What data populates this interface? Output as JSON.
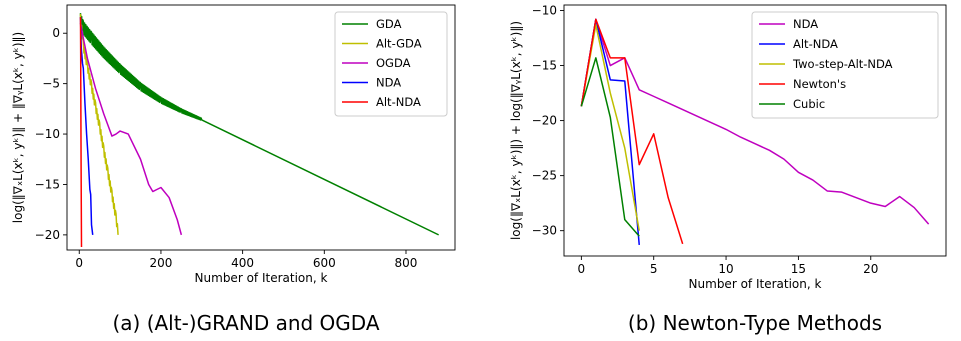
{
  "chart_data": [
    {
      "type": "line",
      "caption": "(a) (Alt-)GRAND and OGDA",
      "xlabel": "Number of Iteration, k",
      "ylabel": "log(‖∇ₓL(xᵏ, yᵏ)‖ + ‖∇ᵧL(xᵏ, yᵏ)‖)",
      "xlim": [
        -30,
        920
      ],
      "ylim": [
        -21.5,
        2.8
      ],
      "xticks": [
        0,
        200,
        400,
        600,
        800
      ],
      "yticks": [
        0,
        -5,
        -10,
        -15,
        -20
      ],
      "legend_position": "top-right",
      "series": [
        {
          "name": "GDA",
          "color": "#008000",
          "oscillate": true,
          "x": [
            3,
            10,
            30,
            60,
            100,
            150,
            200,
            250,
            300,
            880
          ],
          "y": [
            1.0,
            0.2,
            -0.8,
            -2.2,
            -3.8,
            -5.5,
            -6.8,
            -7.8,
            -8.6,
            -20.0
          ]
        },
        {
          "name": "Alt-GDA",
          "color": "#bfbf00",
          "oscillate": true,
          "x": [
            3,
            10,
            20,
            30,
            40,
            50,
            60,
            70,
            80,
            90,
            95
          ],
          "y": [
            1.3,
            -1.5,
            -3.5,
            -5.5,
            -7.5,
            -9.5,
            -11.8,
            -14.0,
            -16.2,
            -18.5,
            -20.0
          ]
        },
        {
          "name": "OGDA",
          "color": "#bf00bf",
          "oscillate": false,
          "x": [
            3,
            10,
            20,
            40,
            60,
            80,
            90,
            100,
            120,
            150,
            170,
            180,
            190,
            200,
            220,
            240,
            250
          ],
          "y": [
            1.0,
            -0.5,
            -2.5,
            -5.5,
            -8.0,
            -10.2,
            -10.0,
            -9.7,
            -10.0,
            -12.5,
            -15.0,
            -15.7,
            -15.5,
            -15.3,
            -16.3,
            -18.5,
            -20.0
          ]
        },
        {
          "name": "NDA",
          "color": "#0000ff",
          "oscillate": false,
          "x": [
            3,
            5,
            8,
            10,
            14,
            18,
            22,
            26,
            28,
            30,
            33
          ],
          "y": [
            1.6,
            -1.5,
            -3.0,
            -3.5,
            -7.0,
            -10.0,
            -12.5,
            -15.5,
            -16.0,
            -19.0,
            -20.0
          ]
        },
        {
          "name": "Alt-NDA",
          "color": "#ff0000",
          "oscillate": false,
          "x": [
            3,
            3.5,
            4,
            4.5,
            5,
            5.5
          ],
          "y": [
            1.6,
            -2.0,
            -8.0,
            -13.0,
            -17.0,
            -21.2
          ]
        }
      ]
    },
    {
      "type": "line",
      "caption": "(b) Newton-Type Methods",
      "xlabel": "Number of Iteration, k",
      "ylabel": "log(‖∇ₓL(xᵏ, yᵏ)‖) + log(‖∇ᵧL(xᵏ, yᵏ)‖)",
      "xlim": [
        -1.2,
        25.2
      ],
      "ylim": [
        -32.3,
        -9.5
      ],
      "xticks": [
        0,
        5,
        10,
        15,
        20
      ],
      "yticks": [
        -10,
        -15,
        -20,
        -25,
        -30
      ],
      "legend_position": "top-right",
      "series": [
        {
          "name": "NDA",
          "color": "#bf00bf",
          "x": [
            0,
            1,
            2,
            3,
            4,
            5,
            6,
            7,
            8,
            9,
            10,
            11,
            12,
            13,
            14,
            15,
            16,
            17,
            18,
            19,
            20,
            21,
            22,
            23,
            24
          ],
          "y": [
            -18.7,
            -10.8,
            -15.0,
            -14.3,
            -17.2,
            -17.8,
            -18.4,
            -19.0,
            -19.6,
            -20.2,
            -20.8,
            -21.5,
            -22.1,
            -22.7,
            -23.5,
            -24.7,
            -25.4,
            -26.4,
            -26.5,
            -27.0,
            -27.5,
            -27.8,
            -26.9,
            -27.9,
            -29.4
          ]
        },
        {
          "name": "Alt-NDA",
          "color": "#0000ff",
          "x": [
            0,
            1,
            2,
            3,
            4
          ],
          "y": [
            -18.7,
            -10.8,
            -16.3,
            -16.4,
            -31.3
          ]
        },
        {
          "name": "Two-step-Alt-NDA",
          "color": "#bfbf00",
          "x": [
            0,
            1,
            2,
            3,
            4
          ],
          "y": [
            -18.7,
            -11.3,
            -17.5,
            -22.5,
            -30.0
          ]
        },
        {
          "name": "Newton's",
          "color": "#ff0000",
          "x": [
            0,
            1,
            2,
            3,
            4,
            5,
            6,
            7
          ],
          "y": [
            -18.7,
            -10.8,
            -14.3,
            -14.3,
            -24.0,
            -21.2,
            -27.0,
            -31.2
          ]
        },
        {
          "name": "Cubic",
          "color": "#008000",
          "x": [
            0,
            1,
            2,
            3,
            4
          ],
          "y": [
            -18.7,
            -14.3,
            -19.7,
            -29.0,
            -30.5
          ]
        }
      ]
    }
  ]
}
